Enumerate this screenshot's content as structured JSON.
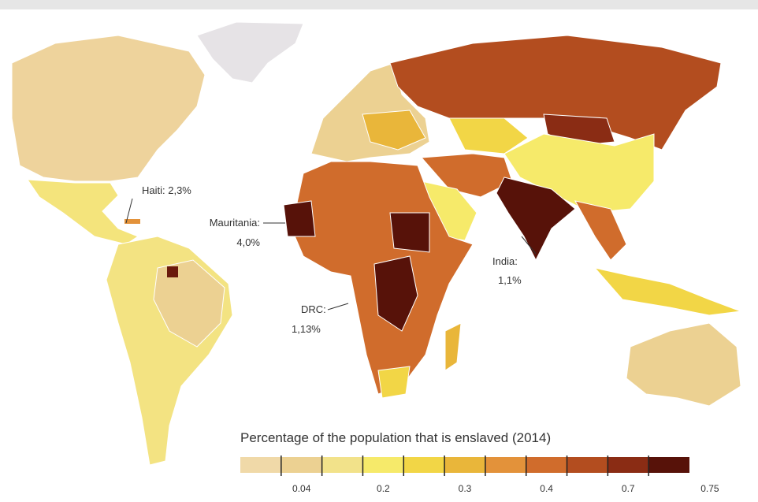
{
  "annotations": [
    {
      "lines": [
        "Haiti: 2,3%"
      ]
    },
    {
      "lines": [
        "Mauritania:",
        "4,0%"
      ]
    },
    {
      "lines": [
        "India:",
        "1,1%"
      ]
    },
    {
      "lines": [
        "DRC:",
        "1,13%"
      ]
    }
  ],
  "legend": {
    "title": "Percentage of the population that is enslaved (2014)",
    "colors": [
      "#f0d9a8",
      "#ecd192",
      "#f2e28a",
      "#f6ea6a",
      "#f2d646",
      "#e9b63a",
      "#e3923a",
      "#d06c2c",
      "#b34d1f",
      "#8a2c14",
      "#571209"
    ],
    "ticks": [
      "0.04",
      "0.2",
      "0.3",
      "0.4",
      "0.7",
      "0.75"
    ]
  }
}
